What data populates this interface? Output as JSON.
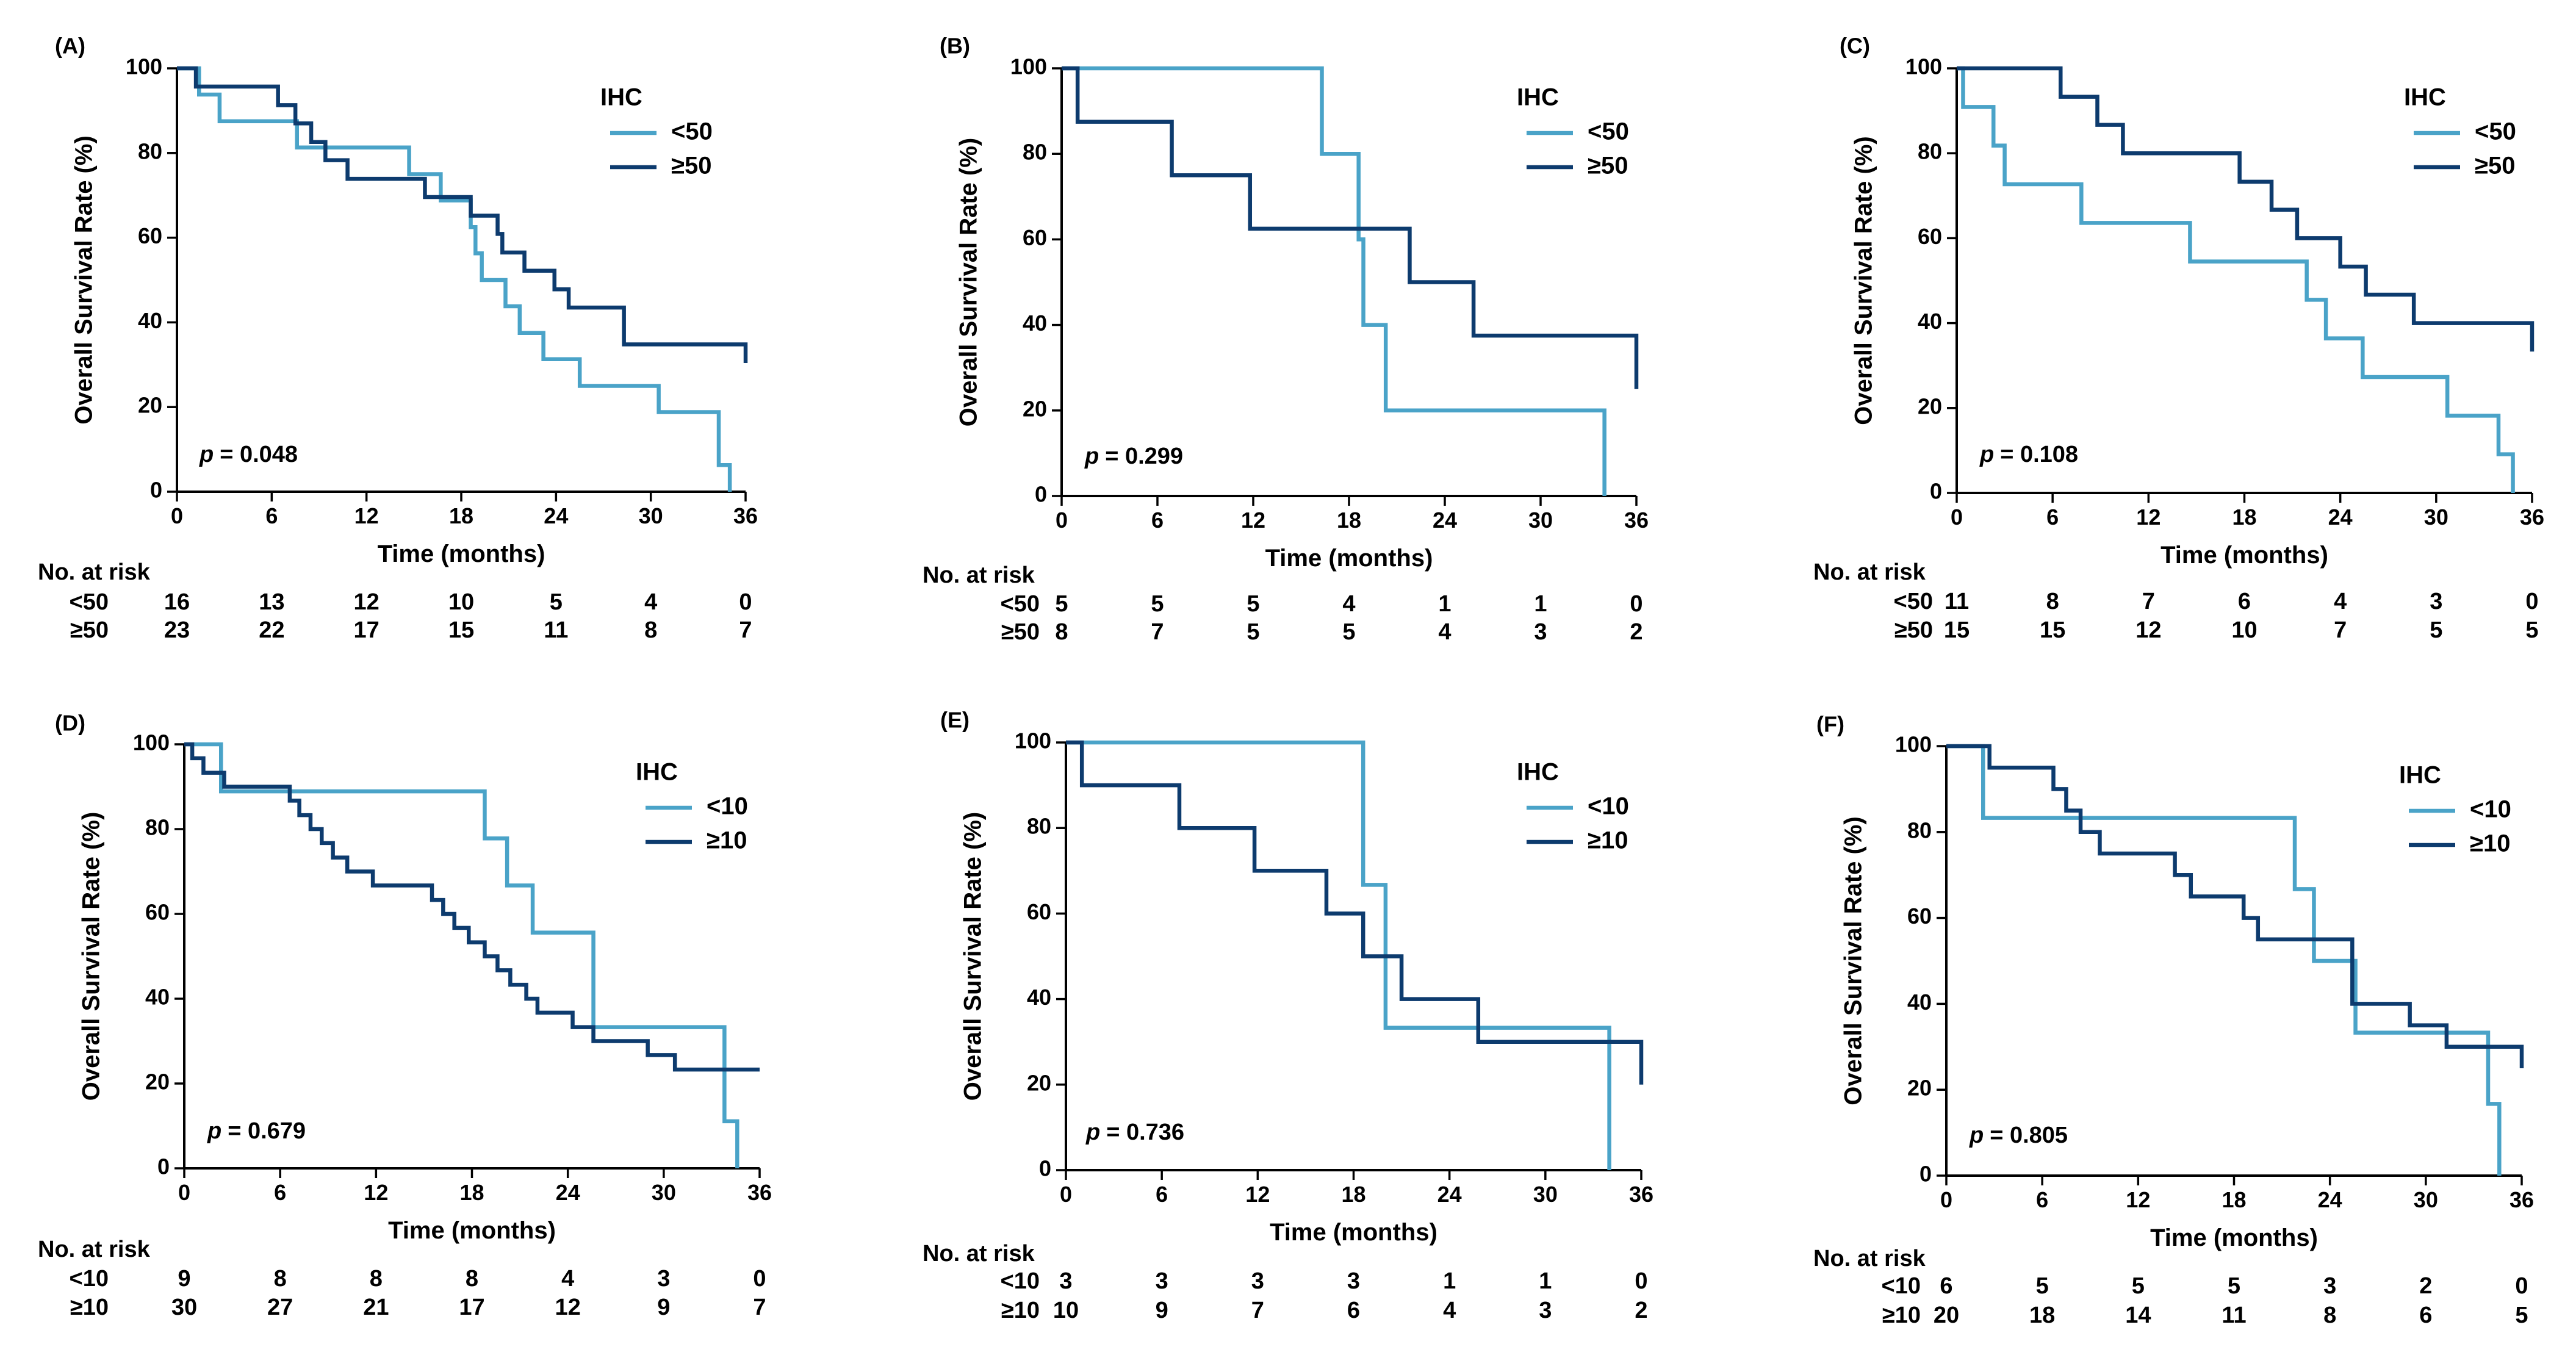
{
  "colors": {
    "low": "#4aa3c8",
    "high": "#0d3b6e"
  },
  "axis": {
    "xlabel": "Time (months)",
    "ylabel": "Overall Survival Rate (%)",
    "xticks": [
      0,
      6,
      12,
      18,
      24,
      30,
      36
    ],
    "yticks": [
      0,
      20,
      40,
      60,
      80,
      100
    ],
    "xlim": [
      0,
      36
    ],
    "ylim": [
      0,
      100
    ]
  },
  "chart_data": [
    {
      "type": "line",
      "panel": "(A)",
      "title": "",
      "xlabel": "Time (months)",
      "ylabel": "Overall Survival Rate (%)",
      "legend_title": "IHC",
      "p_label": "p",
      "p_value": "= 0.048",
      "series": [
        {
          "name": "<50",
          "color": "#4aa3c8",
          "x": [
            0,
            1.4,
            2.7,
            7.6,
            14.7,
            16.7,
            18.6,
            18.9,
            19.3,
            20.8,
            21.7,
            23.2,
            25.5,
            30.5,
            34.3,
            35.0
          ],
          "y": [
            100,
            93.8,
            87.5,
            81.3,
            75.0,
            68.8,
            62.5,
            56.3,
            50.0,
            43.8,
            37.5,
            31.3,
            25.0,
            18.8,
            6.3,
            0
          ]
        },
        {
          "name": "≥50",
          "color": "#0d3b6e",
          "x": [
            0,
            1.2,
            6.4,
            7.5,
            8.5,
            9.4,
            10.8,
            15.7,
            18.6,
            20.3,
            20.6,
            22.0,
            23.9,
            24.8,
            28.3,
            36.0
          ],
          "y": [
            100,
            95.7,
            91.3,
            87.0,
            82.6,
            78.3,
            73.9,
            69.6,
            65.2,
            60.9,
            56.5,
            52.2,
            47.8,
            43.5,
            34.8,
            30.4
          ]
        }
      ],
      "risk_table": {
        "title": "No. at risk",
        "rows": [
          {
            "label": "<50",
            "values": [
              "16",
              "13",
              "12",
              "10",
              "5",
              "4",
              "0"
            ]
          },
          {
            "label": "≥50",
            "values": [
              "23",
              "22",
              "17",
              "15",
              "11",
              "8",
              "7"
            ]
          }
        ]
      }
    },
    {
      "type": "line",
      "panel": "(B)",
      "title": "",
      "xlabel": "Time (months)",
      "ylabel": "Overall Survival Rate (%)",
      "legend_title": "IHC",
      "p_label": "p",
      "p_value": "= 0.299",
      "series": [
        {
          "name": "<50",
          "color": "#4aa3c8",
          "x": [
            0,
            16.3,
            18.6,
            18.9,
            20.3,
            34.0
          ],
          "y": [
            100,
            80,
            60,
            40,
            20,
            0
          ]
        },
        {
          "name": "≥50",
          "color": "#0d3b6e",
          "x": [
            0,
            1.0,
            6.9,
            11.8,
            21.8,
            25.8,
            36.0
          ],
          "y": [
            100,
            87.5,
            75.0,
            62.5,
            50.0,
            37.5,
            25.0
          ]
        }
      ],
      "risk_table": {
        "title": "No. at risk",
        "rows": [
          {
            "label": "<50",
            "values": [
              "5",
              "5",
              "5",
              "4",
              "1",
              "1",
              "0"
            ]
          },
          {
            "label": "≥50",
            "values": [
              "8",
              "7",
              "5",
              "5",
              "4",
              "3",
              "2"
            ]
          }
        ]
      }
    },
    {
      "type": "line",
      "panel": "(C)",
      "title": "",
      "xlabel": "Time (months)",
      "ylabel": "Overall Survival Rate (%)",
      "legend_title": "IHC",
      "p_label": "p",
      "p_value": "= 0.108",
      "series": [
        {
          "name": "<50",
          "color": "#4aa3c8",
          "x": [
            0,
            0.4,
            2.3,
            3.0,
            7.8,
            14.6,
            21.9,
            23.1,
            25.4,
            30.7,
            33.9,
            34.8
          ],
          "y": [
            100,
            90.9,
            81.8,
            72.7,
            63.6,
            54.5,
            45.5,
            36.4,
            27.3,
            18.2,
            9.1,
            0
          ]
        },
        {
          "name": "≥50",
          "color": "#0d3b6e",
          "x": [
            0,
            6.5,
            8.8,
            10.4,
            17.7,
            19.7,
            21.3,
            24.0,
            25.6,
            28.6,
            36.0
          ],
          "y": [
            100,
            93.3,
            86.7,
            80.0,
            73.3,
            66.7,
            60.0,
            53.3,
            46.7,
            40.0,
            33.3
          ]
        }
      ],
      "risk_table": {
        "title": "No. at risk",
        "rows": [
          {
            "label": "<50",
            "values": [
              "11",
              "8",
              "7",
              "6",
              "4",
              "3",
              "0"
            ]
          },
          {
            "label": "≥50",
            "values": [
              "15",
              "15",
              "12",
              "10",
              "7",
              "5",
              "5"
            ]
          }
        ]
      }
    },
    {
      "type": "line",
      "panel": "(D)",
      "title": "",
      "xlabel": "Time (months)",
      "ylabel": "Overall Survival Rate (%)",
      "legend_title": "IHC",
      "p_label": "p",
      "p_value": "= 0.679",
      "series": [
        {
          "name": "<10",
          "color": "#4aa3c8",
          "x": [
            0,
            2.3,
            18.8,
            20.2,
            21.8,
            25.6,
            33.8,
            34.6
          ],
          "y": [
            100,
            88.9,
            77.8,
            66.7,
            55.6,
            33.3,
            11.1,
            0
          ]
        },
        {
          "name": "≥10",
          "color": "#0d3b6e",
          "x": [
            0,
            0.5,
            1.2,
            2.5,
            6.6,
            7.2,
            7.9,
            8.6,
            9.3,
            10.2,
            11.8,
            15.5,
            16.2,
            16.9,
            17.8,
            18.8,
            19.6,
            20.4,
            21.4,
            22.1,
            24.3,
            25.6,
            29.0,
            30.7,
            36.0
          ],
          "y": [
            100,
            96.7,
            93.3,
            90.0,
            86.7,
            83.3,
            80.0,
            76.7,
            73.3,
            70.0,
            66.7,
            63.3,
            60.0,
            56.7,
            53.3,
            50.0,
            46.7,
            43.3,
            40.0,
            36.7,
            33.3,
            30.0,
            26.7,
            23.3,
            23.3
          ]
        }
      ],
      "risk_table": {
        "title": "No. at risk",
        "rows": [
          {
            "label": "<10",
            "values": [
              "9",
              "8",
              "8",
              "8",
              "4",
              "3",
              "0"
            ]
          },
          {
            "label": "≥10",
            "values": [
              "30",
              "27",
              "21",
              "17",
              "12",
              "9",
              "7"
            ]
          }
        ]
      }
    },
    {
      "type": "line",
      "panel": "(E)",
      "title": "",
      "xlabel": "Time (months)",
      "ylabel": "Overall Survival Rate (%)",
      "legend_title": "IHC",
      "p_label": "p",
      "p_value": "= 0.736",
      "series": [
        {
          "name": "<10",
          "color": "#4aa3c8",
          "x": [
            0,
            18.6,
            20.0,
            34.0
          ],
          "y": [
            100,
            66.7,
            33.3,
            0
          ]
        },
        {
          "name": "≥10",
          "color": "#0d3b6e",
          "x": [
            0,
            1.0,
            7.1,
            11.8,
            16.3,
            18.6,
            21.0,
            25.8,
            36.0
          ],
          "y": [
            100,
            90,
            80,
            70,
            60,
            50,
            40,
            30,
            20
          ]
        }
      ],
      "risk_table": {
        "title": "No. at risk",
        "rows": [
          {
            "label": "<10",
            "values": [
              "3",
              "3",
              "3",
              "3",
              "1",
              "1",
              "0"
            ]
          },
          {
            "label": "≥10",
            "values": [
              "10",
              "9",
              "7",
              "6",
              "4",
              "3",
              "2"
            ]
          }
        ]
      }
    },
    {
      "type": "line",
      "panel": "(F)",
      "title": "",
      "xlabel": "Time (months)",
      "ylabel": "Overall Survival Rate (%)",
      "legend_title": "IHC",
      "p_label": "p",
      "p_value": "= 0.805",
      "series": [
        {
          "name": "<10",
          "color": "#4aa3c8",
          "x": [
            0,
            2.3,
            21.8,
            23.0,
            25.6,
            33.9,
            34.6
          ],
          "y": [
            100,
            83.3,
            66.7,
            50.0,
            33.3,
            16.7,
            0
          ]
        },
        {
          "name": "≥10",
          "color": "#0d3b6e",
          "x": [
            0,
            2.7,
            6.7,
            7.5,
            8.4,
            9.6,
            14.3,
            15.3,
            18.6,
            19.5,
            25.4,
            29.0,
            31.3,
            36.0
          ],
          "y": [
            100,
            95,
            90,
            85,
            80,
            75,
            70,
            65,
            60,
            55,
            40,
            35,
            30,
            25
          ]
        }
      ],
      "risk_table": {
        "title": "No. at risk",
        "rows": [
          {
            "label": "<10",
            "values": [
              "6",
              "5",
              "5",
              "5",
              "3",
              "2",
              "0"
            ]
          },
          {
            "label": "≥10",
            "values": [
              "20",
              "18",
              "14",
              "11",
              "8",
              "6",
              "5"
            ]
          }
        ]
      }
    }
  ]
}
